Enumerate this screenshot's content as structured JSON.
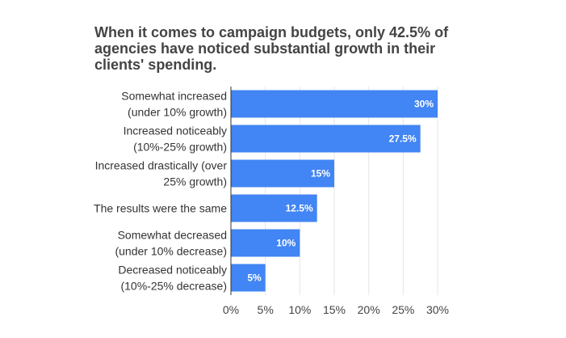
{
  "chart_data": {
    "type": "bar",
    "orientation": "horizontal",
    "title": "When it comes to campaign budgets, only 42.5% of agencies have noticed substantial growth in their clients' spending.",
    "categories": [
      [
        "Somewhat increased",
        "(under 10% growth)"
      ],
      [
        "Increased noticeably",
        "(10%-25% growth)"
      ],
      [
        "Increased drastically (over",
        "25% growth)"
      ],
      [
        "The results were the same"
      ],
      [
        "Somewhat decreased",
        "(under 10% decrease)"
      ],
      [
        "Decreased noticeably",
        "(10%-25% decrease)"
      ]
    ],
    "values": [
      30,
      27.5,
      15,
      12.5,
      10,
      5
    ],
    "data_labels": [
      "30%",
      "27.5%",
      "15%",
      "12.5%",
      "10%",
      "5%"
    ],
    "xlim": [
      0,
      30
    ],
    "x_ticks": [
      "0%",
      "5%",
      "10%",
      "15%",
      "20%",
      "25%",
      "30%"
    ],
    "grid": true,
    "colors": {
      "bar": "#4285f4",
      "grid": "#e6e6e6",
      "axis": "#333333"
    }
  }
}
